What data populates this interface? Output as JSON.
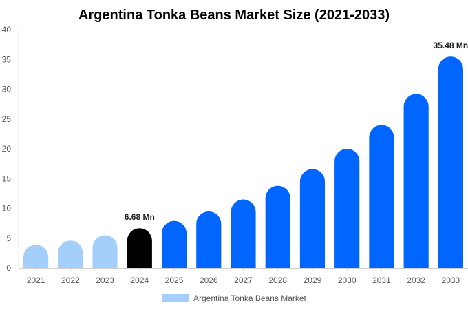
{
  "chart_data": {
    "type": "bar",
    "title": "Argentina Tonka Beans Market Size (2021-2033)",
    "xlabel": "",
    "ylabel": "",
    "categories": [
      "2021",
      "2022",
      "2023",
      "2024",
      "2025",
      "2026",
      "2027",
      "2028",
      "2029",
      "2030",
      "2031",
      "2032",
      "2033"
    ],
    "series": [
      {
        "name": "Argentina Tonka Beans Market",
        "values": [
          3.9,
          4.6,
          5.5,
          6.68,
          7.9,
          9.5,
          11.5,
          13.8,
          16.6,
          20.0,
          24.0,
          29.2,
          35.48
        ],
        "colors": [
          "#a4cffb",
          "#a4cffb",
          "#a4cffb",
          "#000000",
          "#0066ff",
          "#0066ff",
          "#0066ff",
          "#0066ff",
          "#0066ff",
          "#0066ff",
          "#0066ff",
          "#0066ff",
          "#0066ff"
        ]
      }
    ],
    "data_labels": [
      {
        "category": "2024",
        "text": "6.68 Mn"
      },
      {
        "category": "2033",
        "text": "35.48 Mn"
      }
    ],
    "ylim": [
      0,
      40
    ],
    "yticks": [
      0,
      5,
      10,
      15,
      20,
      25,
      30,
      35,
      40
    ],
    "grid": false,
    "legend": {
      "position": "bottom-center",
      "label": "Argentina Tonka Beans Market",
      "color": "#a4cffb"
    }
  }
}
